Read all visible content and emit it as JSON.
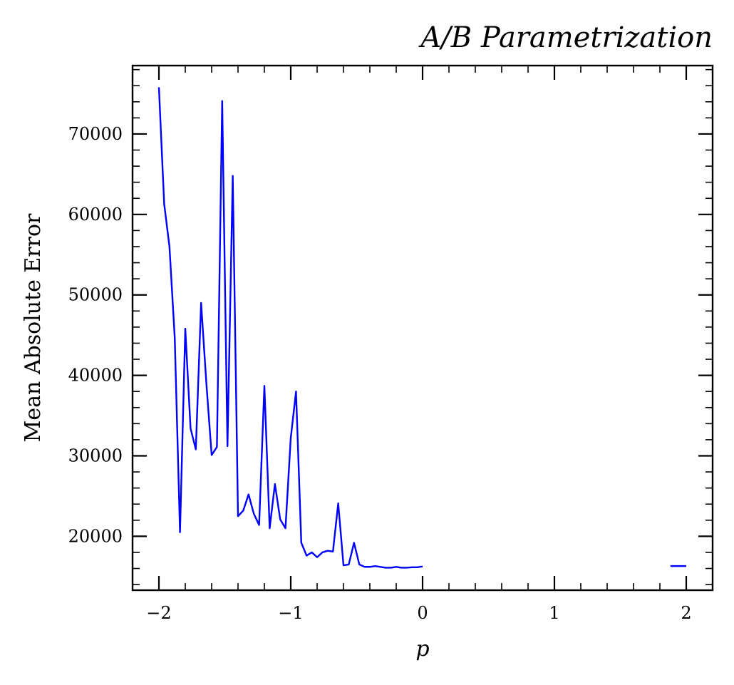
{
  "chart_data": {
    "type": "line",
    "title": "A/B Parametrization",
    "xlabel": "p",
    "ylabel": "Mean Absolute Error",
    "xlim": [
      -2.2,
      2.2
    ],
    "ylim": [
      13300,
      78500
    ],
    "x_ticks": [
      -2,
      -1,
      0,
      1,
      2
    ],
    "x_tick_labels": [
      "−2",
      "−1",
      "0",
      "1",
      "2"
    ],
    "x_minor_step": 0.2,
    "y_ticks": [
      20000,
      30000,
      40000,
      50000,
      60000,
      70000
    ],
    "y_tick_labels": [
      "20000",
      "30000",
      "40000",
      "50000",
      "60000",
      "70000"
    ],
    "y_minor_step": 2000,
    "grid": false,
    "series": [
      {
        "color": "#0000ff",
        "segments": [
          {
            "x": [
              -2.0,
              -1.96,
              -1.92,
              -1.88,
              -1.84,
              -1.8,
              -1.76,
              -1.72,
              -1.68,
              -1.64,
              -1.6,
              -1.56,
              -1.52,
              -1.48,
              -1.44,
              -1.4,
              -1.36,
              -1.32,
              -1.28,
              -1.24,
              -1.2,
              -1.16,
              -1.12,
              -1.08,
              -1.04,
              -1.0,
              -0.96,
              -0.92,
              -0.88,
              -0.84,
              -0.8,
              -0.76,
              -0.72,
              -0.68,
              -0.64,
              -0.6,
              -0.56,
              -0.52,
              -0.48,
              -0.44,
              -0.4,
              -0.36,
              -0.32,
              -0.28,
              -0.24,
              -0.2,
              -0.16,
              -0.12,
              -0.08,
              -0.04,
              0.0
            ],
            "y": [
              75800,
              61300,
              56000,
              44700,
              20500,
              45800,
              33400,
              30800,
              49000,
              39000,
              30100,
              31100,
              74100,
              31200,
              64800,
              22500,
              23200,
              25200,
              22800,
              21400,
              38700,
              21000,
              26500,
              22100,
              21000,
              32200,
              38000,
              19200,
              17600,
              18000,
              17400,
              18000,
              18200,
              18100,
              24100,
              16400,
              16500,
              19200,
              16500,
              16200,
              16200,
              16300,
              16200,
              16100,
              16100,
              16200,
              16100,
              16100,
              16150,
              16150,
              16250
            ]
          },
          {
            "x": [
              1.88,
              2.0
            ],
            "y": [
              16300,
              16300
            ]
          }
        ]
      }
    ]
  }
}
